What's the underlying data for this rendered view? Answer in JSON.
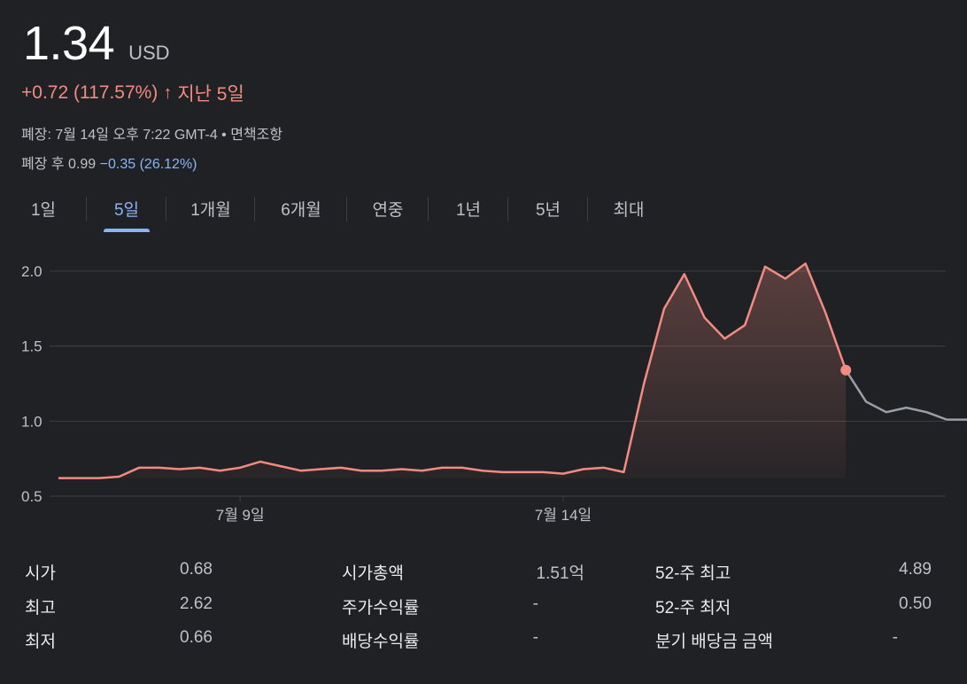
{
  "header": {
    "price": "1.34",
    "currency": "USD",
    "change": "+0.72 (117.57%)",
    "change_arrow": "↑",
    "period": "지난 5일",
    "closed_line": "폐장: 7월 14일 오후 7:22 GMT-4 • 면책조항",
    "after_hours_label": "폐장 후 0.99",
    "after_hours_change": "−0.35 (26.12%)"
  },
  "tabs": [
    {
      "label": "1일",
      "active": false
    },
    {
      "label": "5일",
      "active": true
    },
    {
      "label": "1개월",
      "active": false
    },
    {
      "label": "6개월",
      "active": false
    },
    {
      "label": "연중",
      "active": false
    },
    {
      "label": "1년",
      "active": false
    },
    {
      "label": "5년",
      "active": false
    },
    {
      "label": "최대",
      "active": false
    }
  ],
  "chart_data": {
    "type": "line",
    "ylim": [
      0.5,
      2.0
    ],
    "y_ticks": [
      0.5,
      1.0,
      1.5,
      2.0
    ],
    "y_tick_labels": [
      "0.5",
      "1.0",
      "1.5",
      "2.0"
    ],
    "x_tick_labels": [
      {
        "label": "7월 9일",
        "index": 9
      },
      {
        "label": "7월 14일",
        "index": 25
      }
    ],
    "grid": true,
    "colors": {
      "regular": "#f28b82",
      "after_hours": "#9aa0a6",
      "grid": "#3c4043",
      "text": "#bdc1c6"
    },
    "regular_values": [
      0.62,
      0.62,
      0.62,
      0.63,
      0.69,
      0.69,
      0.68,
      0.69,
      0.67,
      0.69,
      0.73,
      0.7,
      0.67,
      0.68,
      0.69,
      0.67,
      0.67,
      0.68,
      0.67,
      0.69,
      0.69,
      0.67,
      0.66,
      0.66,
      0.66,
      0.65,
      0.68,
      0.69,
      0.66,
      1.25,
      1.75,
      1.98,
      1.69,
      1.55,
      1.64,
      2.03,
      1.95,
      2.05,
      1.72,
      1.34
    ],
    "after_hours_values": [
      1.34,
      1.13,
      1.06,
      1.09,
      1.06,
      1.01,
      1.01
    ]
  },
  "stats": [
    [
      {
        "label": "시가",
        "value": "0.68"
      },
      {
        "label": "최고",
        "value": "2.62"
      },
      {
        "label": "최저",
        "value": "0.66"
      }
    ],
    [
      {
        "label": "시가총액",
        "value": "1.51억"
      },
      {
        "label": "주가수익률",
        "value": "-"
      },
      {
        "label": "배당수익률",
        "value": "-"
      }
    ],
    [
      {
        "label": "52-주 최고",
        "value": "4.89"
      },
      {
        "label": "52-주 최저",
        "value": "0.50"
      },
      {
        "label": "분기 배당금 금액",
        "value": "-"
      }
    ]
  ]
}
